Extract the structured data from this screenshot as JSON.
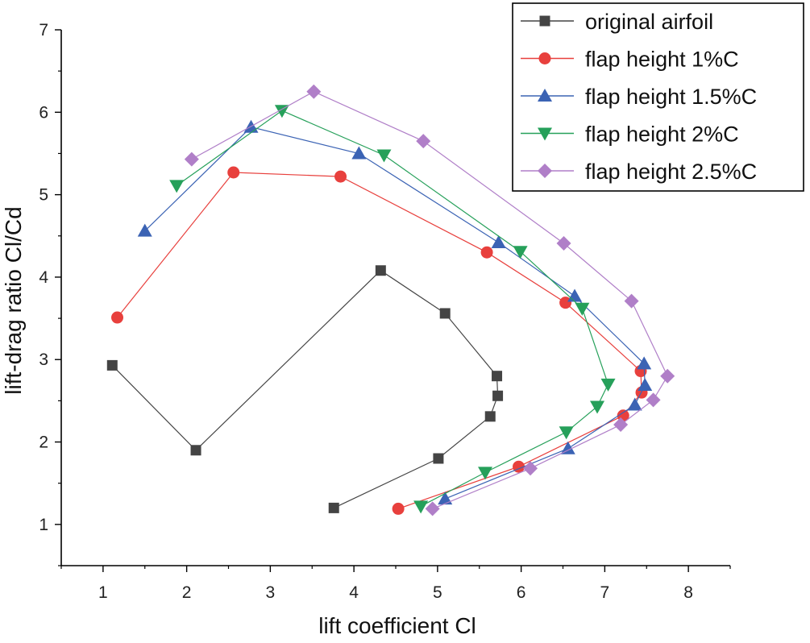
{
  "chart_data": {
    "type": "line",
    "title": "",
    "xlabel": "lift coefficient Cl",
    "ylabel": "lift-drag ratio Cl/Cd",
    "xlim": [
      0.5,
      8.5
    ],
    "ylim": [
      0.5,
      7
    ],
    "xticks": [
      1,
      2,
      3,
      4,
      5,
      6,
      7,
      8
    ],
    "yticks": [
      1,
      2,
      3,
      4,
      5,
      6,
      7
    ],
    "legend_position": "top-right",
    "series": [
      {
        "name": "original airfoil",
        "color": "#444444",
        "marker": "square",
        "points": [
          [
            1.11,
            2.93
          ],
          [
            2.11,
            1.9
          ],
          [
            4.32,
            4.08
          ],
          [
            5.09,
            3.56
          ],
          [
            5.71,
            2.8
          ],
          [
            5.72,
            2.56
          ],
          [
            5.63,
            2.31
          ],
          [
            5.01,
            1.8
          ],
          [
            3.76,
            1.2
          ]
        ]
      },
      {
        "name": "flap height 1%C",
        "color": "#e8403d",
        "marker": "circle",
        "points": [
          [
            1.17,
            3.51
          ],
          [
            2.56,
            5.27
          ],
          [
            3.84,
            5.22
          ],
          [
            5.59,
            4.3
          ],
          [
            6.53,
            3.69
          ],
          [
            7.43,
            2.86
          ],
          [
            7.44,
            2.6
          ],
          [
            7.22,
            2.32
          ],
          [
            5.97,
            1.7
          ],
          [
            4.53,
            1.19
          ]
        ]
      },
      {
        "name": "flap height 1.5%C",
        "color": "#3b63b4",
        "marker": "triangle-up",
        "points": [
          [
            1.5,
            4.56
          ],
          [
            2.77,
            5.82
          ],
          [
            4.06,
            5.5
          ],
          [
            5.73,
            4.42
          ],
          [
            6.64,
            3.77
          ],
          [
            7.47,
            2.95
          ],
          [
            7.48,
            2.69
          ],
          [
            7.36,
            2.45
          ],
          [
            6.56,
            1.92
          ],
          [
            5.09,
            1.31
          ]
        ]
      },
      {
        "name": "flap height 2%C",
        "color": "#26a05a",
        "marker": "triangle-down",
        "points": [
          [
            1.88,
            5.11
          ],
          [
            3.14,
            6.02
          ],
          [
            4.36,
            5.48
          ],
          [
            5.99,
            4.31
          ],
          [
            6.73,
            3.62
          ],
          [
            7.04,
            2.7
          ],
          [
            6.91,
            2.43
          ],
          [
            6.54,
            2.12
          ],
          [
            5.57,
            1.63
          ],
          [
            4.8,
            1.22
          ]
        ]
      },
      {
        "name": "flap height 2.5%C",
        "color": "#b07fc8",
        "marker": "diamond",
        "points": [
          [
            2.06,
            5.43
          ],
          [
            3.52,
            6.25
          ],
          [
            4.83,
            5.65
          ],
          [
            6.51,
            4.41
          ],
          [
            7.32,
            3.71
          ],
          [
            7.75,
            2.8
          ],
          [
            7.58,
            2.51
          ],
          [
            7.19,
            2.21
          ],
          [
            6.11,
            1.68
          ],
          [
            4.94,
            1.19
          ]
        ]
      }
    ]
  }
}
